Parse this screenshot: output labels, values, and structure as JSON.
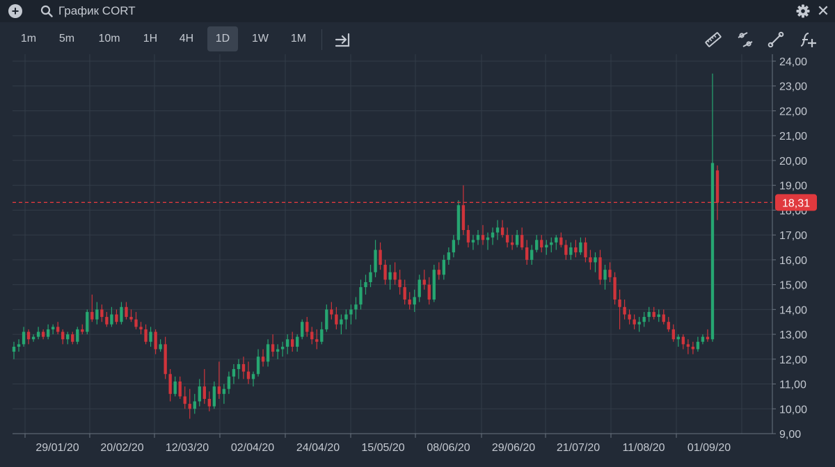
{
  "header": {
    "title": "График CORT"
  },
  "toolbar": {
    "timeframes": [
      {
        "label": "1m"
      },
      {
        "label": "5m"
      },
      {
        "label": "10m"
      },
      {
        "label": "1H"
      },
      {
        "label": "4H"
      },
      {
        "label": "1D",
        "active": true
      },
      {
        "label": "1W"
      },
      {
        "label": "1M"
      }
    ]
  },
  "colors": {
    "up": "#26a671",
    "down": "#d0343b",
    "grid": "#333c48",
    "price_line": "#e0393e",
    "background": "#222a36"
  },
  "chart_data": {
    "type": "candlestick",
    "symbol": "CORT",
    "y_ticks": [
      "9,00",
      "10,00",
      "11,00",
      "12,00",
      "13,00",
      "14,00",
      "15,00",
      "16,00",
      "17,00",
      "18,00",
      "19,00",
      "20,00",
      "21,00",
      "22,00",
      "23,00",
      "24,00"
    ],
    "x_ticks": [
      "29/01/20",
      "20/02/20",
      "12/03/20",
      "02/04/20",
      "24/04/20",
      "15/05/20",
      "08/06/20",
      "29/06/20",
      "21/07/20",
      "11/08/20",
      "01/09/20"
    ],
    "ylim": [
      9,
      24
    ],
    "last_price": 18.31,
    "last_price_label": "18,31",
    "grid": true,
    "ohlc": [
      [
        12.3,
        12.7,
        12.0,
        12.5
      ],
      [
        12.5,
        12.8,
        12.3,
        12.6
      ],
      [
        12.6,
        13.3,
        12.5,
        13.1
      ],
      [
        13.1,
        13.2,
        12.6,
        12.8
      ],
      [
        12.8,
        13.0,
        12.7,
        12.9
      ],
      [
        12.9,
        13.3,
        12.8,
        13.1
      ],
      [
        13.1,
        13.2,
        12.8,
        12.9
      ],
      [
        12.9,
        13.4,
        12.8,
        13.2
      ],
      [
        13.2,
        13.4,
        13.0,
        13.3
      ],
      [
        13.3,
        13.5,
        13.0,
        13.1
      ],
      [
        13.1,
        13.2,
        12.6,
        12.8
      ],
      [
        12.8,
        13.1,
        12.6,
        13.0
      ],
      [
        13.0,
        13.1,
        12.6,
        12.7
      ],
      [
        12.7,
        13.3,
        12.6,
        13.2
      ],
      [
        13.2,
        13.4,
        13.0,
        13.1
      ],
      [
        13.1,
        14.0,
        13.0,
        13.9
      ],
      [
        13.9,
        14.6,
        13.5,
        13.6
      ],
      [
        13.6,
        14.3,
        13.4,
        14.0
      ],
      [
        14.0,
        14.2,
        13.5,
        13.7
      ],
      [
        13.7,
        13.9,
        13.3,
        13.4
      ],
      [
        13.4,
        14.1,
        13.3,
        13.8
      ],
      [
        13.8,
        14.0,
        13.4,
        13.5
      ],
      [
        13.5,
        14.3,
        13.4,
        14.1
      ],
      [
        14.1,
        14.3,
        13.6,
        13.7
      ],
      [
        13.7,
        14.0,
        13.5,
        13.6
      ],
      [
        13.6,
        13.9,
        13.2,
        13.3
      ],
      [
        13.3,
        13.5,
        13.0,
        13.2
      ],
      [
        13.2,
        13.4,
        12.6,
        12.7
      ],
      [
        12.7,
        13.3,
        12.5,
        13.1
      ],
      [
        13.1,
        13.2,
        12.2,
        12.4
      ],
      [
        12.4,
        12.8,
        12.3,
        12.6
      ],
      [
        12.6,
        12.9,
        11.2,
        11.4
      ],
      [
        11.4,
        11.6,
        10.3,
        10.6
      ],
      [
        10.6,
        11.3,
        10.5,
        11.1
      ],
      [
        11.1,
        11.3,
        10.4,
        10.5
      ],
      [
        10.5,
        10.9,
        10.0,
        10.2
      ],
      [
        10.2,
        10.8,
        9.6,
        10.0
      ],
      [
        10.0,
        10.6,
        9.8,
        10.3
      ],
      [
        10.3,
        11.2,
        10.1,
        10.9
      ],
      [
        10.9,
        11.6,
        10.2,
        10.4
      ],
      [
        10.4,
        10.7,
        9.9,
        10.1
      ],
      [
        10.1,
        11.1,
        10.0,
        10.9
      ],
      [
        10.9,
        11.9,
        10.4,
        10.6
      ],
      [
        10.6,
        11.0,
        10.2,
        10.8
      ],
      [
        10.8,
        11.5,
        10.6,
        11.3
      ],
      [
        11.3,
        11.8,
        11.0,
        11.6
      ],
      [
        11.6,
        12.0,
        11.2,
        11.8
      ],
      [
        11.8,
        12.1,
        11.2,
        11.5
      ],
      [
        11.5,
        11.9,
        11.0,
        11.2
      ],
      [
        11.2,
        11.5,
        10.9,
        11.4
      ],
      [
        11.4,
        12.4,
        11.3,
        12.1
      ],
      [
        12.1,
        12.4,
        11.7,
        11.9
      ],
      [
        11.9,
        12.8,
        11.7,
        12.6
      ],
      [
        12.6,
        13.0,
        12.1,
        12.3
      ],
      [
        12.3,
        12.6,
        12.0,
        12.4
      ],
      [
        12.4,
        12.7,
        12.1,
        12.5
      ],
      [
        12.5,
        13.0,
        12.2,
        12.8
      ],
      [
        12.8,
        13.1,
        12.3,
        12.5
      ],
      [
        12.5,
        13.0,
        12.3,
        12.9
      ],
      [
        12.9,
        13.6,
        12.8,
        13.5
      ],
      [
        13.5,
        13.7,
        12.9,
        13.1
      ],
      [
        13.1,
        13.3,
        12.6,
        12.8
      ],
      [
        12.8,
        13.2,
        12.4,
        12.7
      ],
      [
        12.7,
        13.5,
        12.6,
        13.2
      ],
      [
        13.2,
        14.2,
        13.1,
        14.0
      ],
      [
        14.0,
        14.3,
        13.6,
        13.8
      ],
      [
        13.8,
        14.1,
        13.2,
        13.4
      ],
      [
        13.4,
        13.8,
        13.0,
        13.6
      ],
      [
        13.6,
        14.0,
        13.2,
        13.8
      ],
      [
        13.8,
        14.2,
        13.4,
        14.0
      ],
      [
        14.0,
        14.5,
        13.6,
        14.2
      ],
      [
        14.2,
        15.2,
        14.0,
        14.9
      ],
      [
        14.9,
        15.4,
        14.6,
        15.1
      ],
      [
        15.1,
        15.8,
        14.9,
        15.5
      ],
      [
        15.5,
        16.8,
        15.3,
        16.4
      ],
      [
        16.4,
        16.7,
        15.6,
        15.8
      ],
      [
        15.8,
        16.0,
        15.0,
        15.2
      ],
      [
        15.2,
        15.8,
        14.8,
        15.5
      ],
      [
        15.5,
        15.9,
        15.0,
        15.2
      ],
      [
        15.2,
        15.6,
        14.6,
        14.9
      ],
      [
        14.9,
        15.2,
        14.2,
        14.4
      ],
      [
        14.4,
        14.7,
        14.0,
        14.2
      ],
      [
        14.2,
        14.8,
        13.9,
        14.5
      ],
      [
        14.5,
        15.4,
        14.3,
        15.2
      ],
      [
        15.2,
        15.6,
        14.8,
        15.0
      ],
      [
        15.0,
        15.3,
        14.2,
        14.4
      ],
      [
        14.4,
        15.8,
        14.3,
        15.6
      ],
      [
        15.6,
        15.9,
        15.2,
        15.4
      ],
      [
        15.4,
        16.2,
        15.2,
        16.0
      ],
      [
        16.0,
        16.5,
        15.8,
        16.3
      ],
      [
        16.3,
        17.0,
        16.1,
        16.8
      ],
      [
        16.8,
        18.4,
        16.6,
        18.2
      ],
      [
        18.2,
        19.0,
        17.0,
        17.2
      ],
      [
        17.2,
        17.4,
        16.5,
        16.7
      ],
      [
        16.7,
        17.0,
        16.4,
        16.8
      ],
      [
        16.8,
        17.2,
        16.6,
        17.0
      ],
      [
        17.0,
        17.4,
        16.6,
        16.8
      ],
      [
        16.8,
        17.1,
        16.4,
        16.9
      ],
      [
        16.9,
        17.3,
        16.6,
        17.1
      ],
      [
        17.1,
        17.6,
        16.8,
        17.3
      ],
      [
        17.3,
        17.6,
        16.9,
        17.0
      ],
      [
        17.0,
        17.3,
        16.5,
        16.7
      ],
      [
        16.7,
        17.0,
        16.4,
        16.6
      ],
      [
        16.6,
        17.2,
        16.5,
        17.0
      ],
      [
        17.0,
        17.3,
        16.4,
        16.5
      ],
      [
        16.5,
        16.8,
        15.8,
        16.0
      ],
      [
        16.0,
        16.6,
        15.8,
        16.4
      ],
      [
        16.4,
        17.0,
        16.3,
        16.8
      ],
      [
        16.8,
        17.0,
        16.3,
        16.5
      ],
      [
        16.5,
        16.8,
        16.2,
        16.6
      ],
      [
        16.6,
        16.9,
        16.3,
        16.7
      ],
      [
        16.7,
        17.0,
        16.4,
        16.9
      ],
      [
        16.9,
        17.1,
        16.5,
        16.6
      ],
      [
        16.6,
        16.8,
        16.0,
        16.2
      ],
      [
        16.2,
        16.7,
        16.0,
        16.5
      ],
      [
        16.5,
        16.8,
        16.1,
        16.3
      ],
      [
        16.3,
        16.9,
        16.2,
        16.7
      ],
      [
        16.7,
        16.9,
        15.9,
        16.1
      ],
      [
        16.1,
        16.4,
        15.6,
        15.9
      ],
      [
        15.9,
        16.3,
        15.5,
        16.1
      ],
      [
        16.1,
        16.4,
        15.0,
        15.2
      ],
      [
        15.2,
        15.8,
        14.8,
        15.6
      ],
      [
        15.6,
        15.9,
        15.1,
        15.3
      ],
      [
        15.3,
        15.5,
        14.2,
        14.4
      ],
      [
        14.4,
        14.8,
        13.2,
        14.1
      ],
      [
        14.1,
        14.4,
        13.6,
        13.8
      ],
      [
        13.8,
        14.0,
        13.4,
        13.6
      ],
      [
        13.6,
        13.8,
        13.2,
        13.4
      ],
      [
        13.4,
        13.7,
        13.1,
        13.5
      ],
      [
        13.5,
        13.9,
        13.3,
        13.7
      ],
      [
        13.7,
        14.1,
        13.5,
        13.9
      ],
      [
        13.9,
        14.1,
        13.6,
        13.7
      ],
      [
        13.7,
        14.0,
        13.5,
        13.8
      ],
      [
        13.8,
        14.0,
        13.4,
        13.5
      ],
      [
        13.5,
        13.7,
        13.1,
        13.2
      ],
      [
        13.2,
        13.4,
        12.7,
        12.8
      ],
      [
        12.8,
        13.0,
        12.5,
        12.9
      ],
      [
        12.9,
        13.0,
        12.4,
        12.6
      ],
      [
        12.6,
        12.8,
        12.2,
        12.5
      ],
      [
        12.5,
        12.7,
        12.2,
        12.4
      ],
      [
        12.4,
        12.9,
        12.3,
        12.7
      ],
      [
        12.7,
        13.0,
        12.6,
        12.9
      ],
      [
        12.9,
        13.2,
        12.7,
        12.8
      ],
      [
        12.8,
        23.5,
        12.7,
        19.9
      ],
      [
        19.6,
        19.8,
        17.6,
        18.3
      ]
    ]
  }
}
